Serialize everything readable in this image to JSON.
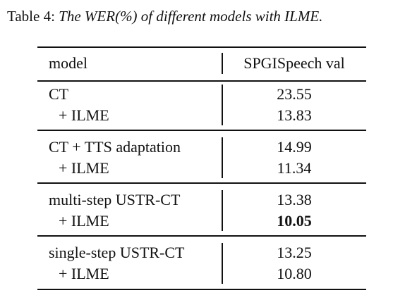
{
  "caption": {
    "label": "Table 4:",
    "text": "The WER(%) of different models with ILME."
  },
  "table": {
    "header": {
      "model": "model",
      "metric": "SPGISpeech val"
    },
    "rows": [
      {
        "model": "CT",
        "value": "23.55"
      },
      {
        "model": "+ ILME",
        "value": "13.83"
      },
      {
        "model": "CT + TTS adaptation",
        "value": "14.99"
      },
      {
        "model": "+ ILME",
        "value": "11.34"
      },
      {
        "model": "multi-step USTR-CT",
        "value": "13.38"
      },
      {
        "model": "+ ILME",
        "value": "10.05",
        "bold": true
      },
      {
        "model": "single-step USTR-CT",
        "value": "13.25"
      },
      {
        "model": "+ ILME",
        "value": "10.80"
      }
    ]
  }
}
